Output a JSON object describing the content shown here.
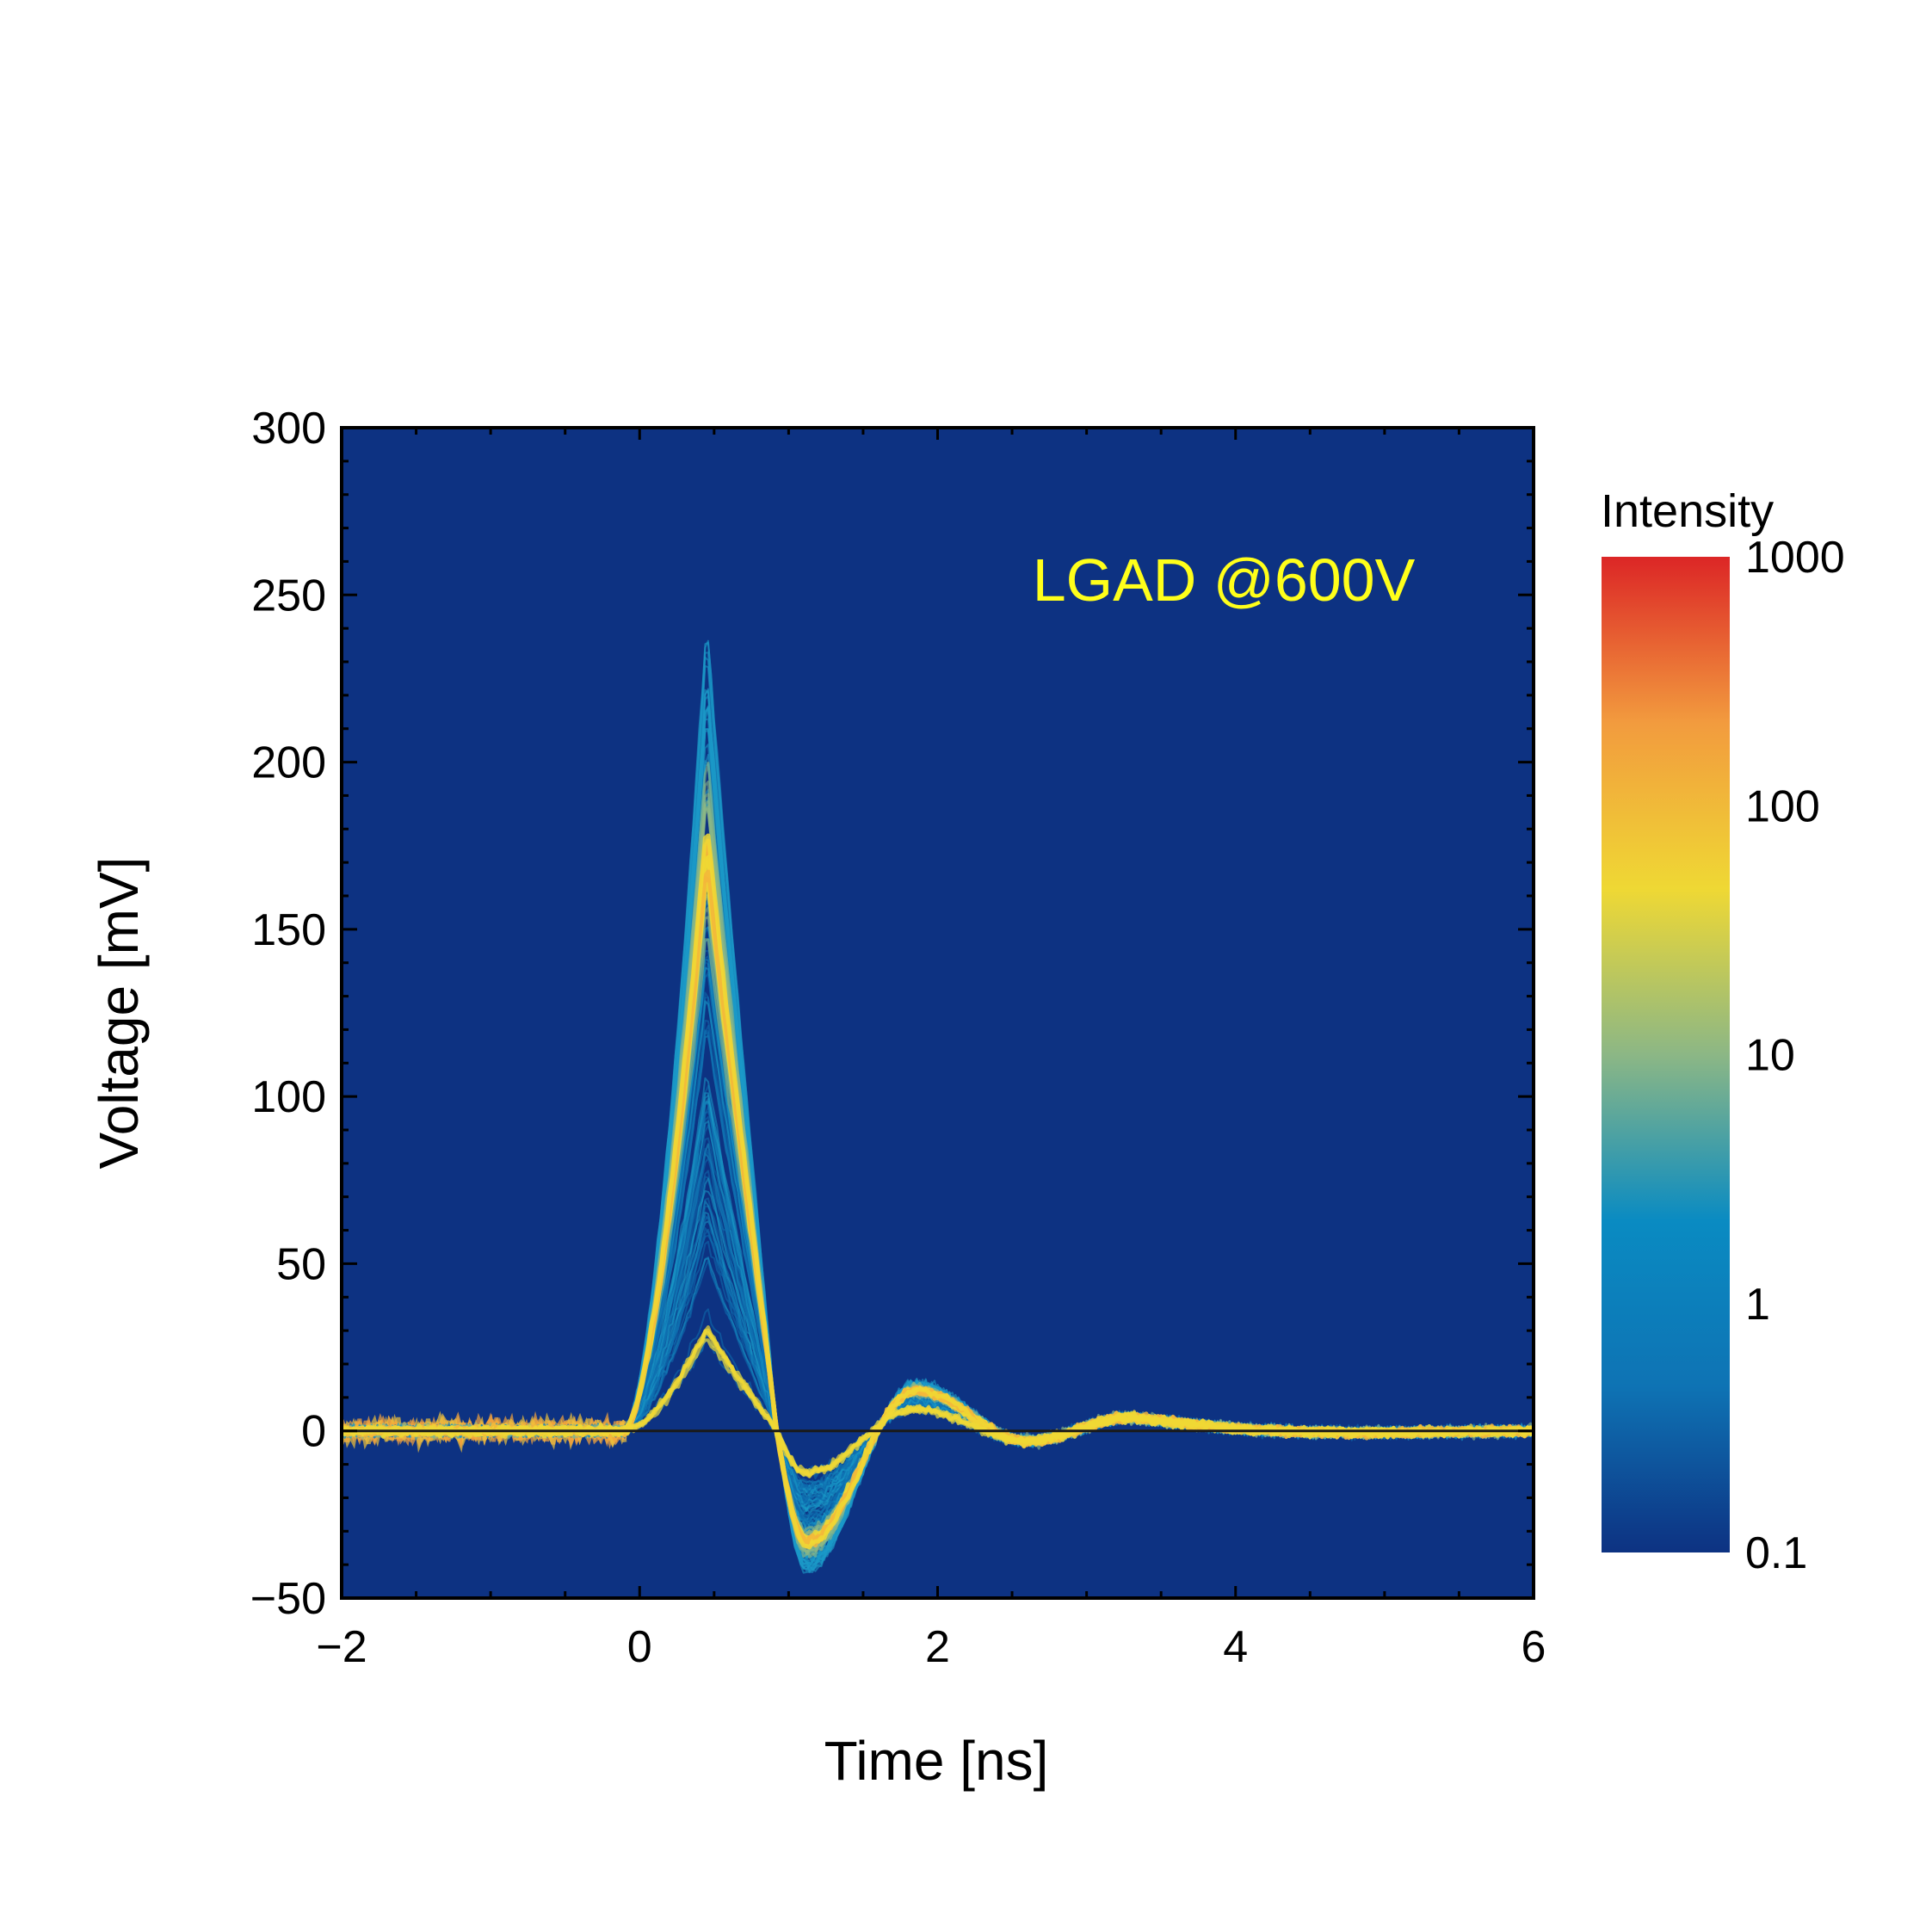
{
  "chart_data": {
    "type": "heatmap",
    "description_kind": "persistence plot of oscilloscope waveforms",
    "xlabel": "Time [ns]",
    "ylabel": "Voltage [mV]",
    "xlim": [
      -2,
      6
    ],
    "ylim": [
      -50,
      300
    ],
    "xticks": [
      -2,
      0,
      2,
      4,
      6
    ],
    "yticks": [
      -50,
      0,
      50,
      100,
      150,
      200,
      250,
      300
    ],
    "xtick_labels": [
      "−2",
      "0",
      "2",
      "4",
      "6"
    ],
    "ytick_labels": [
      "−50",
      "0",
      "50",
      "100",
      "150",
      "200",
      "250",
      "300"
    ],
    "annotation": "LGAD @600V",
    "annotation_color": "#ffff1a",
    "background_color": "#0d3282",
    "colorbar": {
      "title": "Intensity",
      "scale": "log",
      "range": [
        0.1,
        1000
      ],
      "tick_values": [
        1000,
        100,
        10,
        1,
        0.1
      ],
      "tick_labels": [
        "1000",
        "100",
        "10",
        "1",
        "0.1"
      ],
      "colors": [
        "#0d3282",
        "#0e73b4",
        "#0a8bc2",
        "#8cb785",
        "#efd834",
        "#f29b3e",
        "#dc2626"
      ]
    },
    "waveform": {
      "baseline_mv": 0,
      "baseline_noise_mv": 5,
      "onset_time_ns": -0.1,
      "peak_time_ns": 0.45,
      "peak_dense_mv": 175,
      "peak_max_mv": 245,
      "low_amplitude_peak_mv": 27,
      "zero_crossing_ns": 0.92,
      "undershoot_time_ns": 1.12,
      "undershoot_mv": -33,
      "undershoot_min_mv": -48,
      "ringing_peak_time_ns": 1.85,
      "ringing_peak_mv": 12,
      "second_dip_time_ns": 2.6,
      "second_dip_mv": -3,
      "third_bump_time_ns": 3.3,
      "third_bump_mv": 4
    }
  }
}
